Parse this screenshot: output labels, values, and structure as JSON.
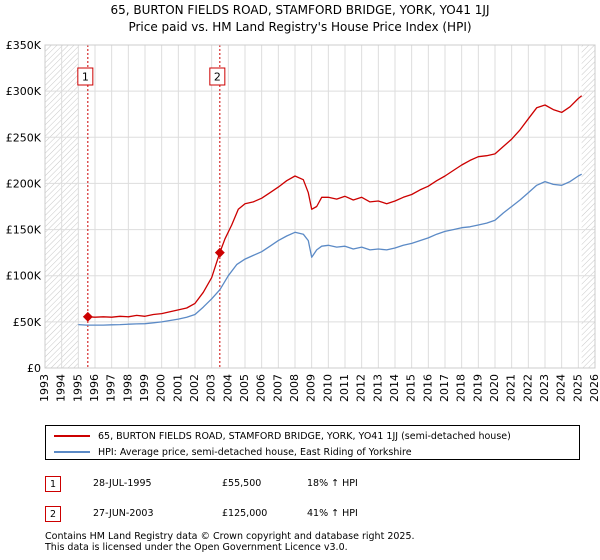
{
  "chart_data": {
    "type": "line",
    "title": "65, BURTON FIELDS ROAD, STAMFORD BRIDGE, YORK, YO41 1JJ",
    "subtitle": "Price paid vs. HM Land Registry's House Price Index (HPI)",
    "xlim": [
      1993,
      2026
    ],
    "ylim": [
      0,
      350000
    ],
    "x_ticks": [
      "1993",
      "1994",
      "1995",
      "1996",
      "1997",
      "1998",
      "1999",
      "2000",
      "2001",
      "2002",
      "2003",
      "2004",
      "2005",
      "2006",
      "2007",
      "2008",
      "2009",
      "2010",
      "2011",
      "2012",
      "2013",
      "2014",
      "2015",
      "2016",
      "2017",
      "2018",
      "2019",
      "2020",
      "2021",
      "2022",
      "2023",
      "2024",
      "2025",
      "2026"
    ],
    "y_ticks": [
      {
        "value": 0,
        "label": "£0"
      },
      {
        "value": 50000,
        "label": "£50K"
      },
      {
        "value": 100000,
        "label": "£100K"
      },
      {
        "value": 150000,
        "label": "£150K"
      },
      {
        "value": 200000,
        "label": "£200K"
      },
      {
        "value": 250000,
        "label": "£250K"
      },
      {
        "value": 300000,
        "label": "£300K"
      },
      {
        "value": 350000,
        "label": "£350K"
      }
    ],
    "grid": true,
    "hatched_ranges": [
      [
        1993,
        1995.0
      ],
      [
        2025.2,
        2026
      ]
    ],
    "series": [
      {
        "name": "65, BURTON FIELDS ROAD, STAMFORD BRIDGE, YORK, YO41 1JJ (semi-detached house)",
        "color": "#cc0000",
        "x": [
          1995.57,
          1996.0,
          1996.5,
          1997.0,
          1997.5,
          1998.0,
          1998.5,
          1999.0,
          1999.5,
          2000.0,
          2000.5,
          2001.0,
          2001.5,
          2002.0,
          2002.5,
          2003.0,
          2003.49,
          2003.8,
          2004.2,
          2004.6,
          2005.0,
          2005.5,
          2006.0,
          2006.5,
          2007.0,
          2007.5,
          2008.0,
          2008.5,
          2008.8,
          2009.0,
          2009.3,
          2009.6,
          2010.0,
          2010.5,
          2011.0,
          2011.5,
          2012.0,
          2012.5,
          2013.0,
          2013.5,
          2014.0,
          2014.5,
          2015.0,
          2015.5,
          2016.0,
          2016.5,
          2017.0,
          2017.5,
          2018.0,
          2018.5,
          2019.0,
          2019.5,
          2020.0,
          2020.5,
          2021.0,
          2021.5,
          2022.0,
          2022.5,
          2023.0,
          2023.5,
          2024.0,
          2024.5,
          2025.0,
          2025.2
        ],
        "values": [
          55500,
          55000,
          55500,
          55000,
          56000,
          55500,
          57000,
          56000,
          58000,
          59000,
          61000,
          63000,
          65000,
          70000,
          82000,
          98000,
          125000,
          140000,
          155000,
          172000,
          178000,
          180000,
          184000,
          190000,
          196000,
          203000,
          208000,
          204000,
          190000,
          172000,
          175000,
          185000,
          185000,
          183000,
          186000,
          182000,
          185000,
          180000,
          181000,
          178000,
          181000,
          185000,
          188000,
          193000,
          197000,
          203000,
          208000,
          214000,
          220000,
          225000,
          229000,
          230000,
          232000,
          240000,
          248000,
          258000,
          270000,
          282000,
          285000,
          280000,
          277000,
          283000,
          292000,
          295000
        ]
      },
      {
        "name": "HPI: Average price, semi-detached house, East Riding of Yorkshire",
        "color": "#5b8ac6",
        "x": [
          1995.0,
          1995.5,
          1996.0,
          1996.5,
          1997.0,
          1997.5,
          1998.0,
          1998.5,
          1999.0,
          1999.5,
          2000.0,
          2000.5,
          2001.0,
          2001.5,
          2002.0,
          2002.5,
          2003.0,
          2003.5,
          2004.0,
          2004.5,
          2005.0,
          2005.5,
          2006.0,
          2006.5,
          2007.0,
          2007.5,
          2008.0,
          2008.5,
          2008.8,
          2009.0,
          2009.3,
          2009.6,
          2010.0,
          2010.5,
          2011.0,
          2011.5,
          2012.0,
          2012.5,
          2013.0,
          2013.5,
          2014.0,
          2014.5,
          2015.0,
          2015.5,
          2016.0,
          2016.5,
          2017.0,
          2017.5,
          2018.0,
          2018.5,
          2019.0,
          2019.5,
          2020.0,
          2020.5,
          2021.0,
          2021.5,
          2022.0,
          2022.5,
          2023.0,
          2023.5,
          2024.0,
          2024.5,
          2025.0,
          2025.2
        ],
        "values": [
          47000,
          46500,
          46500,
          46500,
          46800,
          47000,
          47500,
          47800,
          48000,
          49000,
          50000,
          51500,
          53000,
          55000,
          58000,
          66000,
          75000,
          85000,
          100000,
          112000,
          118000,
          122000,
          126000,
          132000,
          138000,
          143000,
          147000,
          145000,
          138000,
          120000,
          128000,
          132000,
          133000,
          131000,
          132000,
          129000,
          131000,
          128000,
          129000,
          128000,
          130000,
          133000,
          135000,
          138000,
          141000,
          145000,
          148000,
          150000,
          152000,
          153000,
          155000,
          157000,
          160000,
          168000,
          175000,
          182000,
          190000,
          198000,
          202000,
          199000,
          198000,
          202000,
          208000,
          210000
        ]
      }
    ],
    "markers": [
      {
        "label": "1",
        "x": 1995.57,
        "y": 55500
      },
      {
        "label": "2",
        "x": 2003.49,
        "y": 125000
      }
    ]
  },
  "legend": {
    "red_label": "65, BURTON FIELDS ROAD, STAMFORD BRIDGE, YORK, YO41 1JJ (semi-detached house)",
    "blue_label": "HPI: Average price, semi-detached house, East Riding of Yorkshire"
  },
  "transactions": [
    {
      "num": "1",
      "date": "28-JUL-1995",
      "price": "£55,500",
      "hpi": "18% ↑ HPI"
    },
    {
      "num": "2",
      "date": "27-JUN-2003",
      "price": "£125,000",
      "hpi": "41% ↑ HPI"
    }
  ],
  "footer": {
    "line1": "Contains HM Land Registry data © Crown copyright and database right 2025.",
    "line2": "This data is licensed under the Open Government Licence v3.0."
  }
}
